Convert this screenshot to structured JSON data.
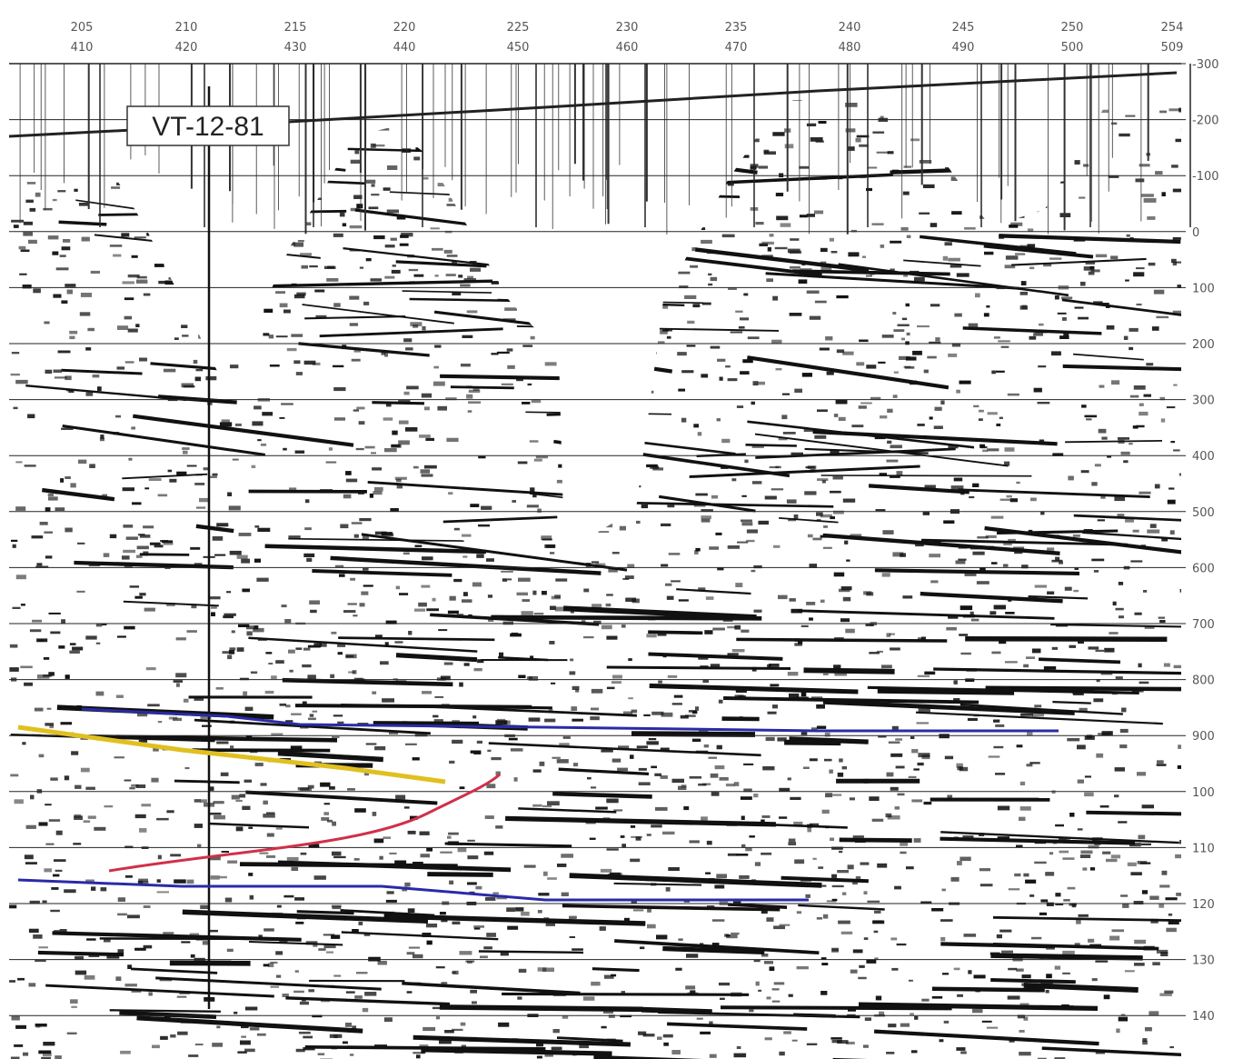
{
  "columns": [
    {
      "top": "205",
      "bottom": "410"
    },
    {
      "top": "210",
      "bottom": "420"
    },
    {
      "top": "215",
      "bottom": "430"
    },
    {
      "top": "220",
      "bottom": "440"
    },
    {
      "top": "225",
      "bottom": "450"
    },
    {
      "top": "230",
      "bottom": "460"
    },
    {
      "top": "235",
      "bottom": "470"
    },
    {
      "top": "240",
      "bottom": "480"
    },
    {
      "top": "245",
      "bottom": "490"
    },
    {
      "top": "250",
      "bottom": "500"
    },
    {
      "top": "254",
      "bottom": "509"
    }
  ],
  "depth_labels": [
    "-300",
    "-200",
    "-100",
    "0",
    "100",
    "200",
    "300",
    "400",
    "500",
    "600",
    "700",
    "800",
    "900",
    "100",
    "110",
    "120",
    "130",
    "140"
  ],
  "well_label": "VT-12-81"
}
